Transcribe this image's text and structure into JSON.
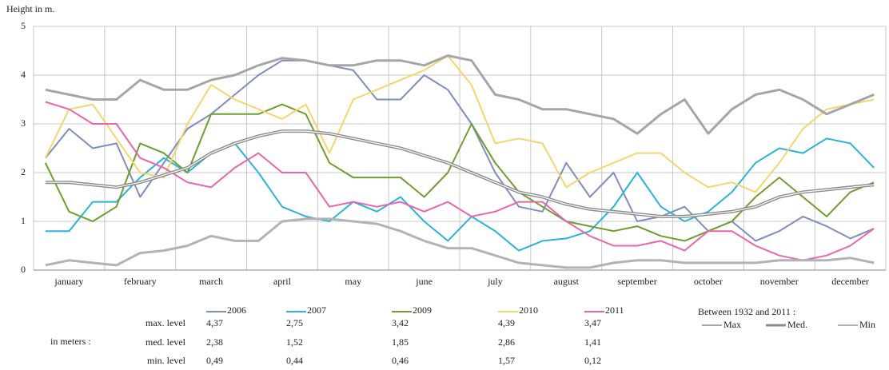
{
  "chart_data": {
    "type": "line",
    "y_label": "Height in m.",
    "categories": [
      null,
      "january",
      null,
      null,
      "february",
      null,
      null,
      "march",
      null,
      null,
      "april",
      null,
      null,
      "may",
      null,
      null,
      "june",
      null,
      null,
      "july",
      null,
      null,
      "august",
      null,
      null,
      "september",
      null,
      null,
      "october",
      null,
      null,
      "november",
      null,
      null,
      "december",
      null
    ],
    "ylim": [
      0,
      5
    ],
    "yticks": [
      0,
      1,
      2,
      3,
      4,
      5
    ],
    "grid": true,
    "series": [
      {
        "name": "2006",
        "color": "#7f8cc2",
        "values": [
          2.3,
          2.9,
          2.5,
          2.6,
          1.5,
          2.2,
          2.9,
          3.2,
          3.6,
          4.0,
          4.3,
          4.3,
          4.2,
          4.1,
          3.5,
          3.5,
          4.0,
          3.7,
          3.0,
          2.0,
          1.3,
          1.2,
          2.2,
          1.5,
          2.0,
          1.0,
          1.1,
          1.3,
          0.8,
          1.0,
          0.6,
          0.8,
          1.1,
          0.9,
          0.65,
          0.85
        ]
      },
      {
        "name": "2007",
        "color": "#2bb3d9",
        "values": [
          0.8,
          0.8,
          1.4,
          1.4,
          1.9,
          2.3,
          2.0,
          2.4,
          2.6,
          2.0,
          1.3,
          1.1,
          1.0,
          1.4,
          1.2,
          1.5,
          1.0,
          0.6,
          1.1,
          0.8,
          0.4,
          0.6,
          0.65,
          0.8,
          1.3,
          2.0,
          1.3,
          1.0,
          1.2,
          1.6,
          2.2,
          2.5,
          2.4,
          2.7,
          2.6,
          2.1
        ]
      },
      {
        "name": "2009",
        "color": "#6e9e2e",
        "values": [
          2.2,
          1.2,
          1.0,
          1.3,
          2.6,
          2.4,
          2.0,
          3.2,
          3.2,
          3.2,
          3.4,
          3.2,
          2.2,
          1.9,
          1.9,
          1.9,
          1.5,
          2.0,
          3.0,
          2.2,
          1.6,
          1.3,
          1.0,
          0.9,
          0.8,
          0.9,
          0.7,
          0.6,
          0.8,
          1.0,
          1.5,
          1.9,
          1.5,
          1.1,
          1.6,
          1.8
        ]
      },
      {
        "name": "2010",
        "color": "#f5d56e",
        "values": [
          2.3,
          3.3,
          3.4,
          2.7,
          2.0,
          1.9,
          3.0,
          3.8,
          3.5,
          3.3,
          3.1,
          3.4,
          2.4,
          3.5,
          3.7,
          3.9,
          4.1,
          4.4,
          3.8,
          2.6,
          2.7,
          2.6,
          1.7,
          2.0,
          2.2,
          2.4,
          2.4,
          2.0,
          1.7,
          1.8,
          1.6,
          2.2,
          2.9,
          3.3,
          3.4,
          3.5
        ]
      },
      {
        "name": "2011",
        "color": "#e866ad",
        "values": [
          3.45,
          3.3,
          3.0,
          3.0,
          2.3,
          2.1,
          1.8,
          1.7,
          2.1,
          2.4,
          2.0,
          2.0,
          1.3,
          1.4,
          1.3,
          1.4,
          1.2,
          1.4,
          1.1,
          1.2,
          1.4,
          1.4,
          1.0,
          0.7,
          0.5,
          0.5,
          0.6,
          0.4,
          0.8,
          0.8,
          0.5,
          0.3,
          0.2,
          0.3,
          0.5,
          0.85
        ]
      },
      {
        "name": "Max",
        "color": "#a6a6a6",
        "values": [
          3.7,
          3.6,
          3.5,
          3.5,
          3.9,
          3.7,
          3.7,
          3.9,
          4.0,
          4.2,
          4.35,
          4.3,
          4.2,
          4.2,
          4.3,
          4.3,
          4.2,
          4.4,
          4.3,
          3.6,
          3.5,
          3.3,
          3.3,
          3.2,
          3.1,
          2.8,
          3.2,
          3.5,
          2.8,
          3.3,
          3.6,
          3.7,
          3.5,
          3.2,
          3.4,
          3.6
        ]
      },
      {
        "name": "Med.",
        "color": "#8c8c8c",
        "values": [
          1.8,
          1.8,
          1.75,
          1.7,
          1.8,
          1.95,
          2.1,
          2.4,
          2.6,
          2.75,
          2.85,
          2.85,
          2.8,
          2.7,
          2.6,
          2.5,
          2.35,
          2.2,
          2.0,
          1.8,
          1.6,
          1.5,
          1.35,
          1.25,
          1.2,
          1.15,
          1.1,
          1.1,
          1.15,
          1.2,
          1.3,
          1.5,
          1.6,
          1.65,
          1.7,
          1.75
        ]
      },
      {
        "name": "Min",
        "color": "#b3b3b3",
        "values": [
          0.1,
          0.2,
          0.15,
          0.1,
          0.35,
          0.4,
          0.5,
          0.7,
          0.6,
          0.6,
          1.0,
          1.05,
          1.05,
          1.0,
          0.95,
          0.8,
          0.6,
          0.45,
          0.45,
          0.3,
          0.15,
          0.1,
          0.05,
          0.05,
          0.15,
          0.2,
          0.2,
          0.15,
          0.15,
          0.15,
          0.15,
          0.2,
          0.2,
          0.2,
          0.25,
          0.15
        ]
      }
    ],
    "stats": {
      "unit_label": "in meters :",
      "row_labels": [
        "max. level",
        "med. level",
        "min. level"
      ],
      "columns": [
        [
          "4,37",
          "2,38",
          "0,49"
        ],
        [
          "2,75",
          "1,52",
          "0,44"
        ],
        [
          "3,42",
          "1,85",
          "0,46"
        ],
        [
          "4,39",
          "2,86",
          "1,57"
        ],
        [
          "3,47",
          "1,41",
          "0,12"
        ]
      ],
      "reference_label": "Between 1932 and 2011 :"
    }
  }
}
